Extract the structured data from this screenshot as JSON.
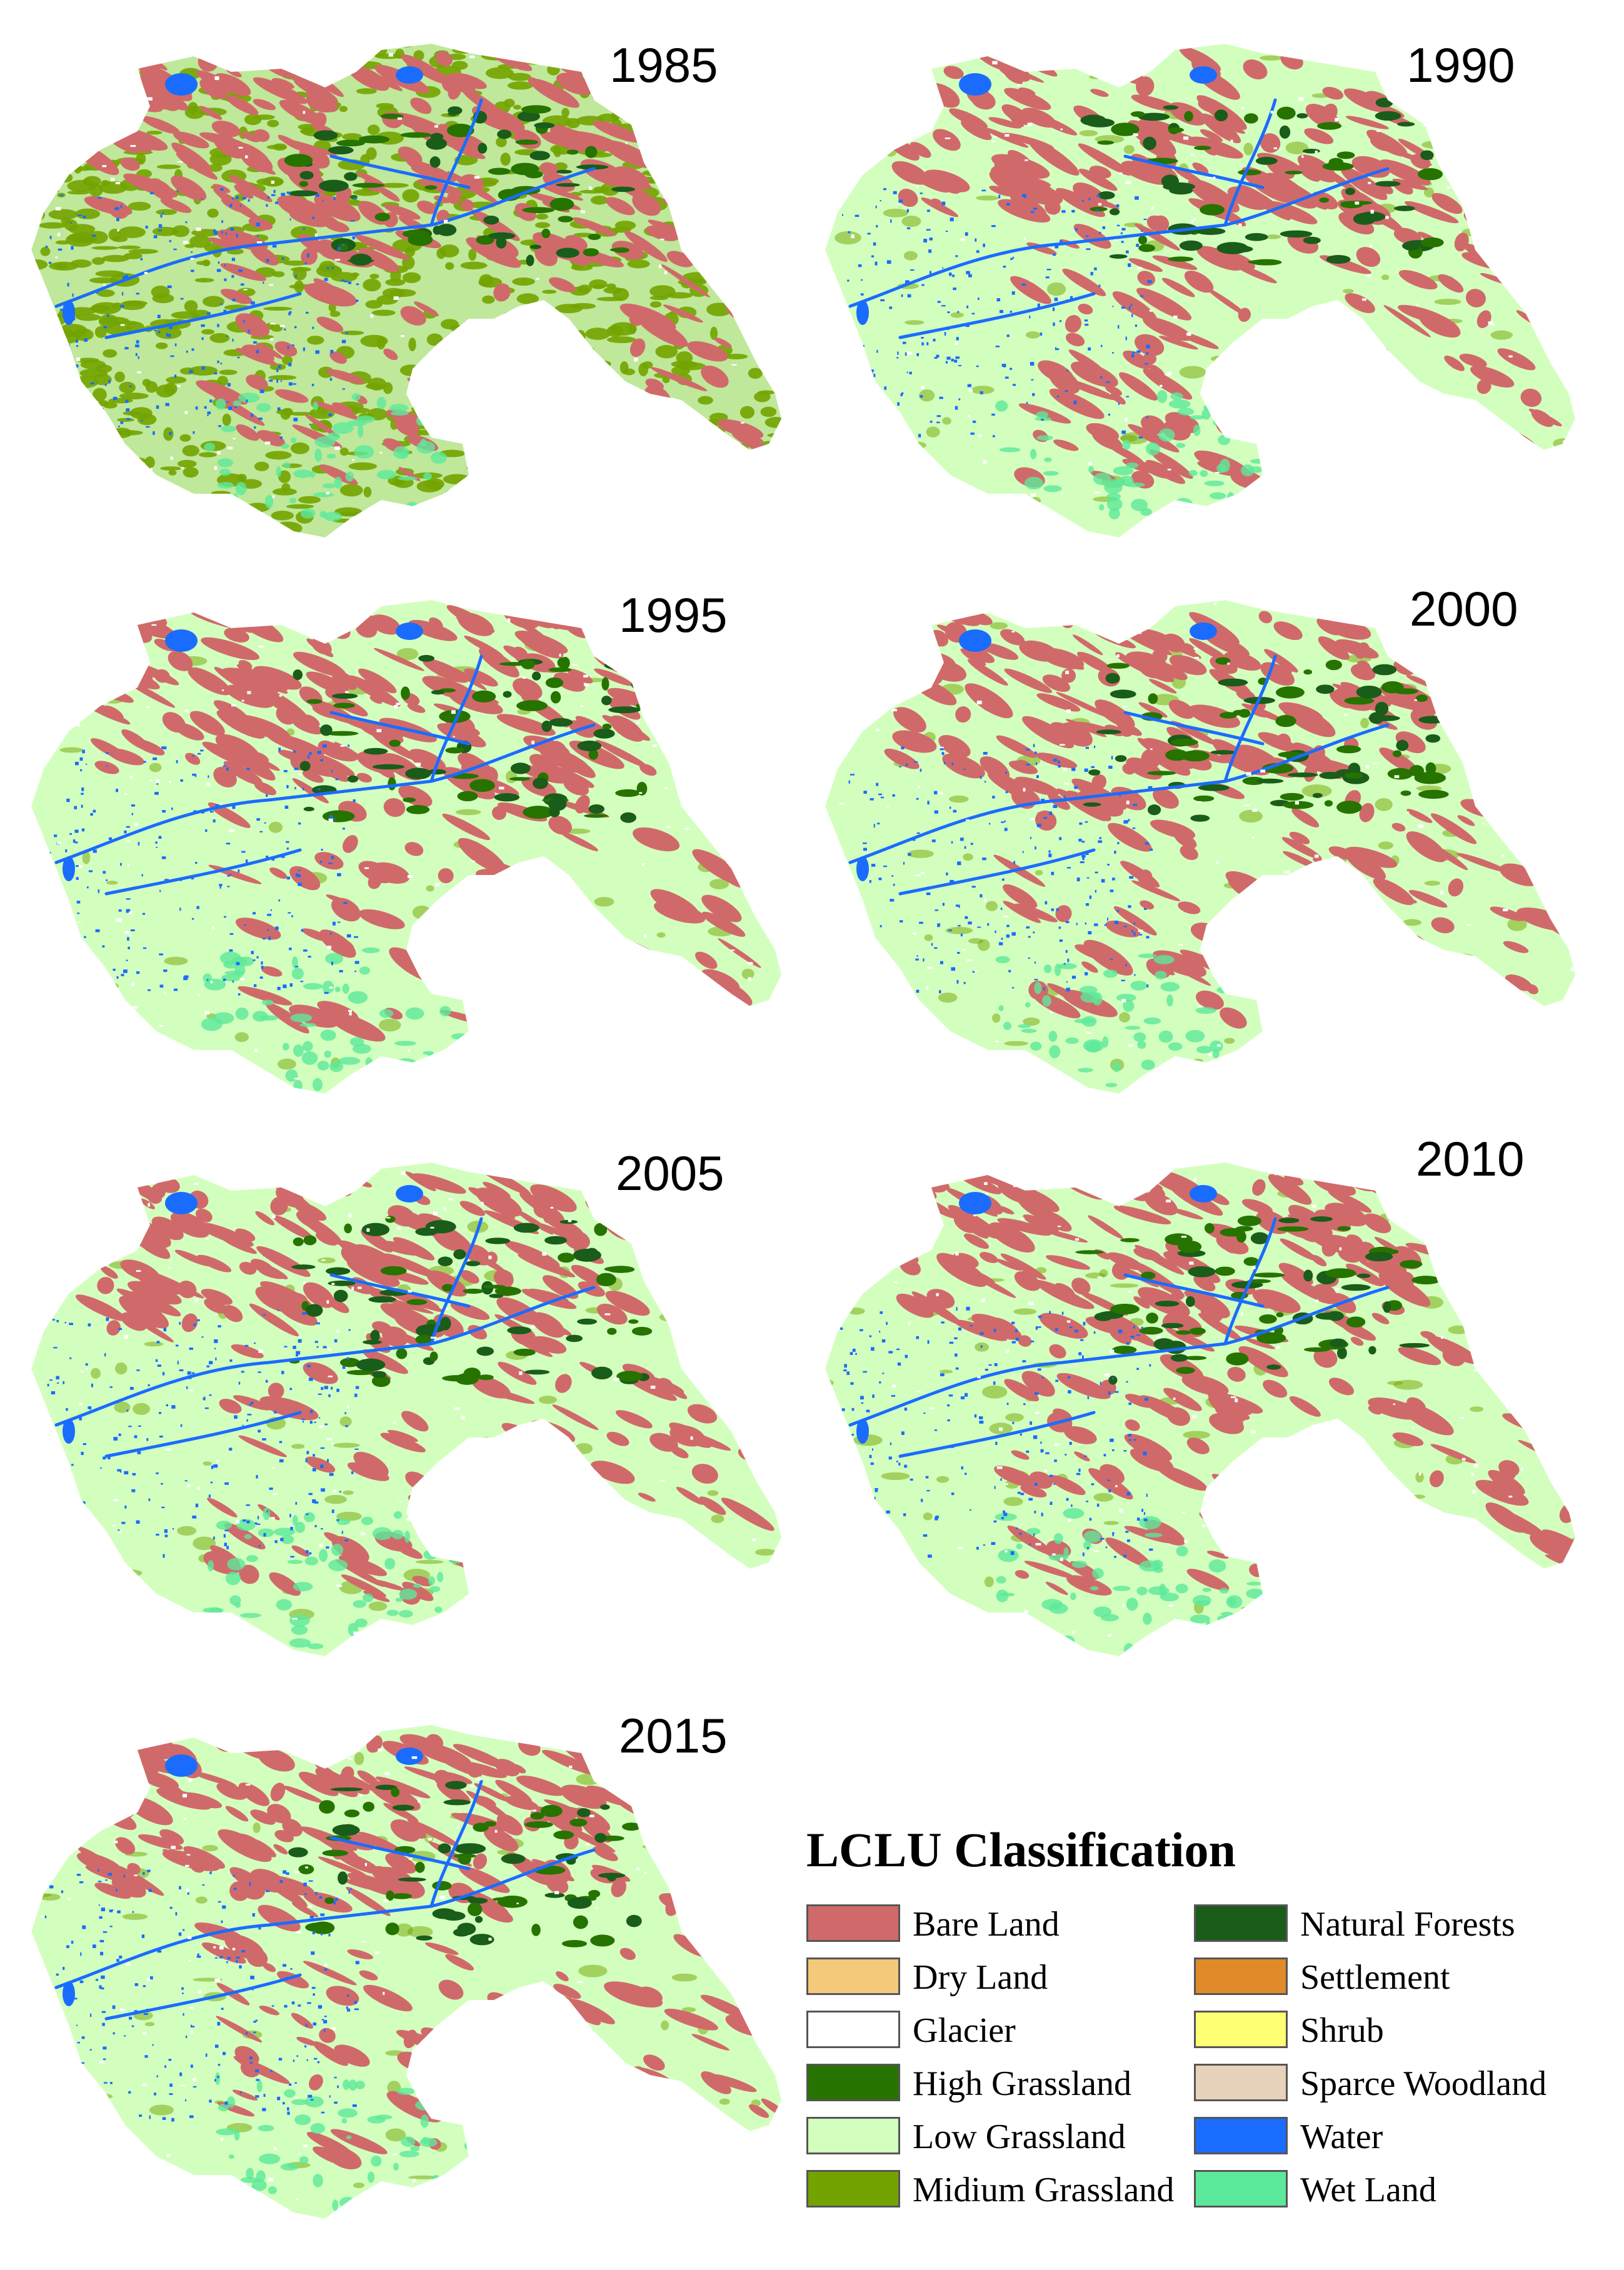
{
  "panels": [
    {
      "year": "1985",
      "style": "mid"
    },
    {
      "year": "1990",
      "style": "low"
    },
    {
      "year": "1995",
      "style": "low"
    },
    {
      "year": "2000",
      "style": "low"
    },
    {
      "year": "2005",
      "style": "low"
    },
    {
      "year": "2010",
      "style": "low"
    },
    {
      "year": "2015",
      "style": "low"
    }
  ],
  "legend": {
    "title": "LCLU Classification",
    "items": [
      {
        "label": "Bare Land",
        "color": "#d06a6a"
      },
      {
        "label": "Dry Land",
        "color": "#f4c97a"
      },
      {
        "label": "Glacier",
        "color": "#ffffff"
      },
      {
        "label": "High Grassland",
        "color": "#267300"
      },
      {
        "label": "Low Grassland",
        "color": "#d3ffbe"
      },
      {
        "label": "Midium Grassland",
        "color": "#73a300"
      },
      {
        "label": "Natural Forests",
        "color": "#1a5c1a"
      },
      {
        "label": "Settlement",
        "color": "#e08a2a"
      },
      {
        "label": "Shrub",
        "color": "#ffff73"
      },
      {
        "label": "Sparce Woodland",
        "color": "#e8d2bb"
      },
      {
        "label": "Water",
        "color": "#1a6cff"
      },
      {
        "label": "Wet Land",
        "color": "#5ce89a"
      }
    ]
  }
}
